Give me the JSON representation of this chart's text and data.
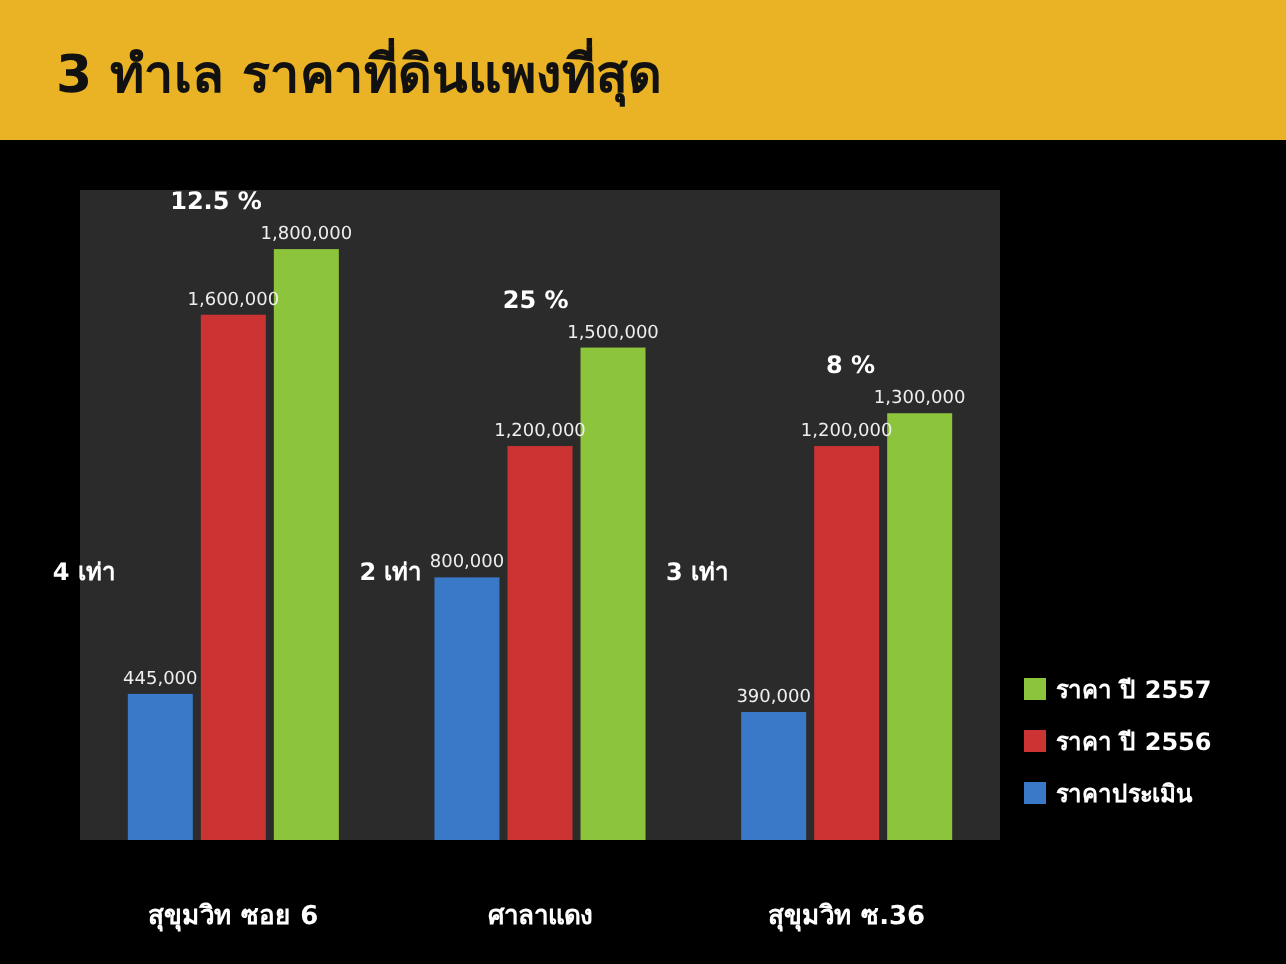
{
  "chart_data": {
    "type": "bar",
    "title": "3 ทำเล ราคาที่ดินแพงที่สุด",
    "categories": [
      "สุขุมวิท ซอย 6",
      "ศาลาแดง",
      "สุขุมวิท ซ.36"
    ],
    "series": [
      {
        "name": "ราคาประเมิน",
        "color": "#3a78c8",
        "values": [
          445000,
          800000,
          390000
        ],
        "value_labels": [
          "445,000",
          "800,000",
          "390,000"
        ]
      },
      {
        "name": "ราคา ปี 2556",
        "color": "#cc3333",
        "values": [
          1600000,
          1200000,
          1200000
        ],
        "value_labels": [
          "1,600,000",
          "1,200,000",
          "1,200,000"
        ]
      },
      {
        "name": "ราคา ปี 2557",
        "color": "#8cc43c",
        "values": [
          1800000,
          1500000,
          1300000
        ],
        "value_labels": [
          "1,800,000",
          "1,500,000",
          "1,300,000"
        ]
      }
    ],
    "legend": "right",
    "annotations": [
      "12.5 %",
      "25 %",
      "8 %",
      "4 เท่า",
      "2 เท่า",
      "3 เท่า"
    ]
  }
}
